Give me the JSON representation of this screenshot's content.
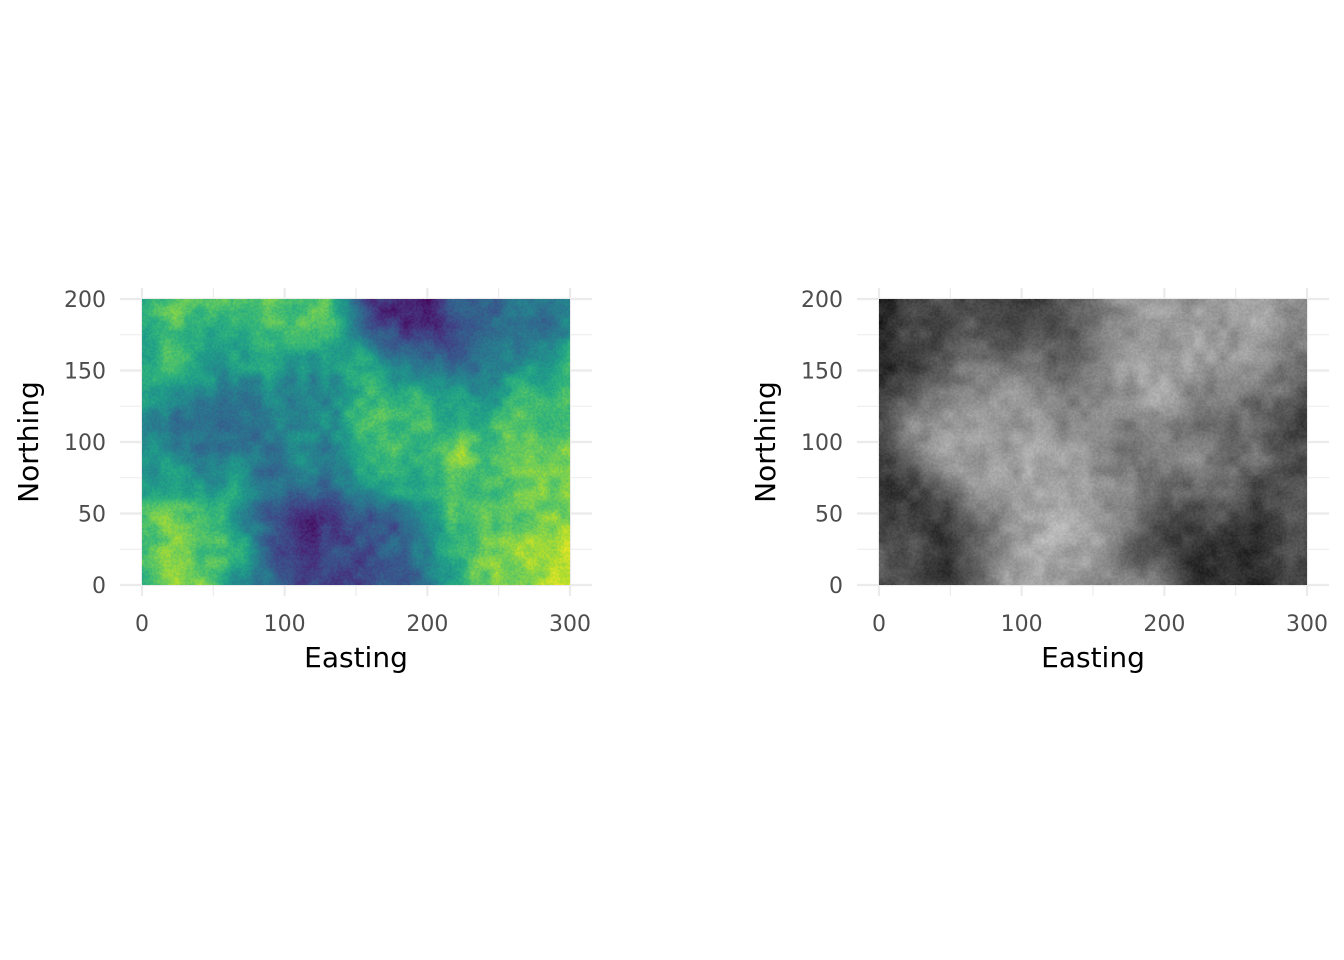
{
  "chart_data": [
    {
      "type": "heatmap",
      "title": "",
      "xlabel": "Easting",
      "ylabel": "Northing",
      "xlim": [
        0,
        300
      ],
      "ylim": [
        0,
        200
      ],
      "x_ticks": [
        "0",
        "100",
        "200",
        "300"
      ],
      "y_ticks": [
        "0",
        "50",
        "100",
        "150",
        "200"
      ],
      "x_tick_values": [
        0,
        100,
        200,
        300
      ],
      "y_tick_values": [
        0,
        50,
        100,
        150,
        200
      ],
      "colormap": "viridis",
      "grid": true,
      "legend": "none",
      "hotspots": [
        {
          "x": 12,
          "y": 185,
          "value": 0.85
        },
        {
          "x": 80,
          "y": 182,
          "value": 0.92
        },
        {
          "x": 65,
          "y": 168,
          "value": 0.78
        },
        {
          "x": 110,
          "y": 135,
          "value": 0.72
        },
        {
          "x": 160,
          "y": 100,
          "value": 0.78
        },
        {
          "x": 230,
          "y": 80,
          "value": 0.82
        },
        {
          "x": 250,
          "y": 95,
          "value": 0.8
        },
        {
          "x": 280,
          "y": 110,
          "value": 0.95
        },
        {
          "x": 285,
          "y": 10,
          "value": 1.0
        },
        {
          "x": 40,
          "y": 45,
          "value": 0.85
        },
        {
          "x": 30,
          "y": 18,
          "value": 0.8
        },
        {
          "x": 230,
          "y": 175,
          "value": 0.1
        },
        {
          "x": 210,
          "y": 190,
          "value": 0.12
        },
        {
          "x": 85,
          "y": 100,
          "value": 0.12
        },
        {
          "x": 145,
          "y": 45,
          "value": 0.15
        },
        {
          "x": 125,
          "y": 5,
          "value": 0.1
        },
        {
          "x": 100,
          "y": 10,
          "value": 0.15
        },
        {
          "x": 20,
          "y": 115,
          "value": 0.22
        }
      ]
    },
    {
      "type": "heatmap",
      "title": "",
      "xlabel": "Easting",
      "ylabel": "Northing",
      "xlim": [
        0,
        300
      ],
      "ylim": [
        0,
        200
      ],
      "x_ticks": [
        "0",
        "100",
        "200",
        "300"
      ],
      "y_ticks": [
        "0",
        "50",
        "100",
        "150",
        "200"
      ],
      "x_tick_values": [
        0,
        100,
        200,
        300
      ],
      "y_tick_values": [
        0,
        50,
        100,
        150,
        200
      ],
      "colormap": "greyscale",
      "grid": true,
      "legend": "none",
      "hotspots": [
        {
          "x": 15,
          "y": 185,
          "value": 0.1
        },
        {
          "x": 75,
          "y": 185,
          "value": 0.1
        },
        {
          "x": 30,
          "y": 50,
          "value": 0.1
        },
        {
          "x": 20,
          "y": 20,
          "value": 0.12
        },
        {
          "x": 280,
          "y": 10,
          "value": 0.05
        },
        {
          "x": 270,
          "y": 90,
          "value": 0.18
        },
        {
          "x": 200,
          "y": 60,
          "value": 0.2
        },
        {
          "x": 140,
          "y": 155,
          "value": 0.22
        },
        {
          "x": 230,
          "y": 165,
          "value": 0.85
        },
        {
          "x": 195,
          "y": 180,
          "value": 0.8
        },
        {
          "x": 100,
          "y": 100,
          "value": 0.85
        },
        {
          "x": 130,
          "y": 55,
          "value": 0.85
        },
        {
          "x": 60,
          "y": 110,
          "value": 0.75
        },
        {
          "x": 130,
          "y": 15,
          "value": 0.75
        },
        {
          "x": 215,
          "y": 125,
          "value": 0.65
        }
      ]
    }
  ]
}
